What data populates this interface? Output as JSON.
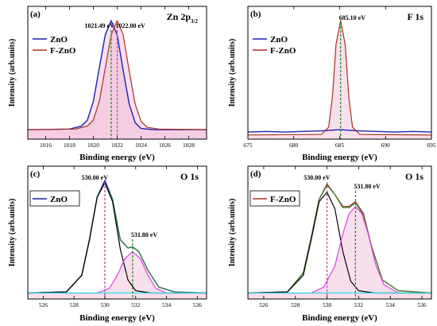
{
  "chart_data": [
    {
      "panel_label": "(a)",
      "type": "line",
      "title_main": "Zn 2p",
      "title_sub": "3/2",
      "xlabel": "Binding energy (eV)",
      "ylabel": "Intensity (arb.units)",
      "xlim": [
        1014.5,
        1029.5
      ],
      "ylim": [
        0,
        1.12
      ],
      "xticks": [
        1016,
        1018,
        1020,
        1022,
        1024,
        1026,
        1028
      ],
      "legend": {
        "placement": "top-left",
        "entries": [
          {
            "name": "ZnO",
            "color": "#1f1fb4"
          },
          {
            "name": "F-ZnO",
            "color": "#a83222"
          }
        ]
      },
      "series": [
        {
          "name": "ZnO",
          "color": "#1f1fb4",
          "fill": "#f0b8d8",
          "x": [
            1014.5,
            1018.0,
            1019.0,
            1019.5,
            1020.0,
            1020.5,
            1021.0,
            1021.49,
            1022.0,
            1022.5,
            1023.0,
            1023.5,
            1024.0,
            1025.0,
            1029.5
          ],
          "y": [
            0.08,
            0.085,
            0.11,
            0.16,
            0.32,
            0.6,
            0.88,
            1.0,
            0.88,
            0.58,
            0.3,
            0.14,
            0.09,
            0.08,
            0.08
          ]
        },
        {
          "name": "F-ZnO",
          "color": "#a83222",
          "fill": "#f0b8d8",
          "x": [
            1014.5,
            1018.5,
            1019.5,
            1020.0,
            1020.5,
            1021.0,
            1021.5,
            1022.0,
            1022.5,
            1023.0,
            1023.5,
            1024.0,
            1024.5,
            1025.5,
            1029.5
          ],
          "y": [
            0.08,
            0.085,
            0.11,
            0.16,
            0.32,
            0.6,
            0.88,
            1.0,
            0.88,
            0.58,
            0.3,
            0.15,
            0.1,
            0.085,
            0.08
          ]
        }
      ],
      "annotations": [
        {
          "text": "1021.49 eV",
          "x": 1021.49,
          "color": "#2e8b2e"
        },
        {
          "text": "1022.00 eV",
          "x": 1022.0,
          "color": "#c04a8f"
        }
      ]
    },
    {
      "panel_label": "(b)",
      "type": "line",
      "title_main": "F 1s",
      "title_sub": "",
      "xlabel": "Binding energy (eV)",
      "ylabel": "Intensity (arb.units)",
      "xlim": [
        675,
        695
      ],
      "ylim": [
        0,
        1.12
      ],
      "xticks": [
        675,
        680,
        685,
        690,
        695
      ],
      "legend": {
        "placement": "top-left",
        "entries": [
          {
            "name": "ZnO",
            "color": "#1f1fb4"
          },
          {
            "name": "F-ZnO",
            "color": "#a83222"
          }
        ]
      },
      "series": [
        {
          "name": "ZnO",
          "color": "#1f1fb4",
          "fill": "",
          "x": [
            675,
            677,
            679,
            681,
            683,
            684,
            685,
            686,
            687,
            689,
            691,
            693,
            695
          ],
          "y": [
            0.06,
            0.065,
            0.06,
            0.065,
            0.07,
            0.075,
            0.08,
            0.075,
            0.07,
            0.065,
            0.06,
            0.065,
            0.06
          ]
        },
        {
          "name": "F-ZnO",
          "color": "#a83222",
          "fill": "#f0b8d8",
          "x": [
            675,
            683.0,
            683.8,
            684.2,
            684.6,
            685.1,
            685.6,
            686.0,
            686.4,
            687.2,
            695
          ],
          "y": [
            0.035,
            0.04,
            0.1,
            0.35,
            0.8,
            1.0,
            0.8,
            0.35,
            0.1,
            0.04,
            0.035
          ]
        }
      ],
      "annotations": [
        {
          "text": "685.10 eV",
          "x": 685.1,
          "color": "#2e8b2e"
        }
      ]
    },
    {
      "panel_label": "(c)",
      "type": "line",
      "title_main": "O 1s",
      "title_sub": "",
      "xlabel": "Binding energy (eV)",
      "ylabel": "Intensity (arb.units)",
      "xlim": [
        525,
        536.6
      ],
      "ylim": [
        0,
        1.12
      ],
      "xticks": [
        526,
        528,
        530,
        532,
        534,
        536
      ],
      "legend": {
        "placement": "top-left",
        "entries": [
          {
            "name": "ZnO",
            "color": "#1f1fb4"
          }
        ]
      },
      "series": [
        {
          "name": "ZnO",
          "color": "#1f1fb4",
          "fill": "",
          "x": [
            525,
            527.5,
            528.5,
            529.0,
            529.5,
            530.0,
            530.5,
            531.0,
            531.5,
            531.8,
            532.2,
            532.8,
            533.5,
            534.5,
            536.6
          ],
          "y": [
            0.05,
            0.06,
            0.2,
            0.5,
            0.86,
            1.0,
            0.84,
            0.5,
            0.43,
            0.44,
            0.4,
            0.24,
            0.1,
            0.06,
            0.05
          ]
        },
        {
          "name": "",
          "color": "#2e8b2e",
          "fill": "",
          "x": [
            525,
            527.5,
            528.5,
            529.0,
            529.5,
            530.0,
            530.5,
            531.0,
            531.5,
            531.8,
            532.2,
            532.8,
            533.5,
            534.5,
            536.6
          ],
          "y": [
            0.05,
            0.06,
            0.2,
            0.5,
            0.86,
            0.98,
            0.84,
            0.5,
            0.43,
            0.44,
            0.4,
            0.24,
            0.1,
            0.06,
            0.05
          ]
        },
        {
          "name": "",
          "color": "#000000",
          "fill": "",
          "x": [
            525,
            527.5,
            528.5,
            529.0,
            529.5,
            530.0,
            530.5,
            531.0,
            531.5,
            532.0,
            533.0,
            536.6
          ],
          "y": [
            0.05,
            0.06,
            0.2,
            0.5,
            0.86,
            0.98,
            0.82,
            0.42,
            0.16,
            0.07,
            0.05,
            0.05
          ]
        },
        {
          "name": "",
          "color": "#e040e0",
          "fill": "#f0b8d8",
          "x": [
            525,
            529.5,
            530.3,
            530.8,
            531.3,
            531.8,
            532.3,
            532.8,
            533.3,
            534.0,
            536.6
          ],
          "y": [
            0.05,
            0.05,
            0.09,
            0.2,
            0.34,
            0.4,
            0.34,
            0.2,
            0.09,
            0.05,
            0.05
          ]
        },
        {
          "name": "",
          "color": "#2ee0e0",
          "fill": "",
          "x": [
            525,
            536.6
          ],
          "y": [
            0.05,
            0.05
          ]
        }
      ],
      "annotations": [
        {
          "text": "530.00 eV",
          "x": 530.0,
          "color": "#c04a8f"
        },
        {
          "text": "531.80 eV",
          "x": 531.8,
          "color": "#2e8b2e"
        }
      ]
    },
    {
      "panel_label": "(d)",
      "type": "line",
      "title_main": "O 1s",
      "title_sub": "",
      "xlabel": "Binding energy (eV)",
      "ylabel": "Intensity (arb.units)",
      "xlim": [
        525,
        536.6
      ],
      "ylim": [
        0,
        1.12
      ],
      "xticks": [
        526,
        528,
        530,
        532,
        534,
        536
      ],
      "legend": {
        "placement": "top-left",
        "entries": [
          {
            "name": "F-ZnO",
            "color": "#a83222"
          }
        ]
      },
      "series": [
        {
          "name": "F-ZnO",
          "color": "#a83222",
          "fill": "",
          "x": [
            525,
            527.5,
            528.5,
            529.0,
            529.5,
            530.0,
            530.5,
            531.0,
            531.4,
            531.8,
            532.3,
            532.8,
            533.5,
            534.5,
            536.6
          ],
          "y": [
            0.05,
            0.06,
            0.22,
            0.52,
            0.84,
            0.97,
            0.88,
            0.78,
            0.78,
            0.82,
            0.72,
            0.45,
            0.16,
            0.07,
            0.05
          ]
        },
        {
          "name": "",
          "color": "#2e8b2e",
          "fill": "",
          "x": [
            525,
            527.5,
            528.5,
            529.0,
            529.5,
            530.0,
            530.5,
            531.0,
            531.4,
            531.8,
            532.3,
            532.8,
            533.5,
            534.5,
            536.6
          ],
          "y": [
            0.05,
            0.06,
            0.22,
            0.52,
            0.84,
            0.96,
            0.88,
            0.77,
            0.77,
            0.81,
            0.71,
            0.45,
            0.16,
            0.07,
            0.05
          ]
        },
        {
          "name": "",
          "color": "#000000",
          "fill": "",
          "x": [
            525,
            527.5,
            528.5,
            529.0,
            529.5,
            530.0,
            530.5,
            531.0,
            531.5,
            532.0,
            533.0,
            536.6
          ],
          "y": [
            0.05,
            0.06,
            0.2,
            0.5,
            0.82,
            0.9,
            0.76,
            0.4,
            0.15,
            0.07,
            0.05,
            0.05
          ]
        },
        {
          "name": "",
          "color": "#e040e0",
          "fill": "#f0b8d8",
          "x": [
            525,
            529.0,
            529.8,
            530.5,
            531.0,
            531.4,
            531.8,
            532.2,
            532.6,
            533.1,
            533.6,
            534.5,
            536.6
          ],
          "y": [
            0.05,
            0.05,
            0.1,
            0.28,
            0.55,
            0.72,
            0.78,
            0.72,
            0.55,
            0.28,
            0.12,
            0.05,
            0.05
          ]
        },
        {
          "name": "",
          "color": "#2ee0e0",
          "fill": "",
          "x": [
            525,
            536.6
          ],
          "y": [
            0.05,
            0.05
          ]
        }
      ],
      "annotations": [
        {
          "text": "530.00 eV",
          "x": 530.0,
          "color": "#c04a8f"
        },
        {
          "text": "531.80 eV",
          "x": 531.8,
          "color": "#2e8b2e"
        }
      ]
    }
  ]
}
